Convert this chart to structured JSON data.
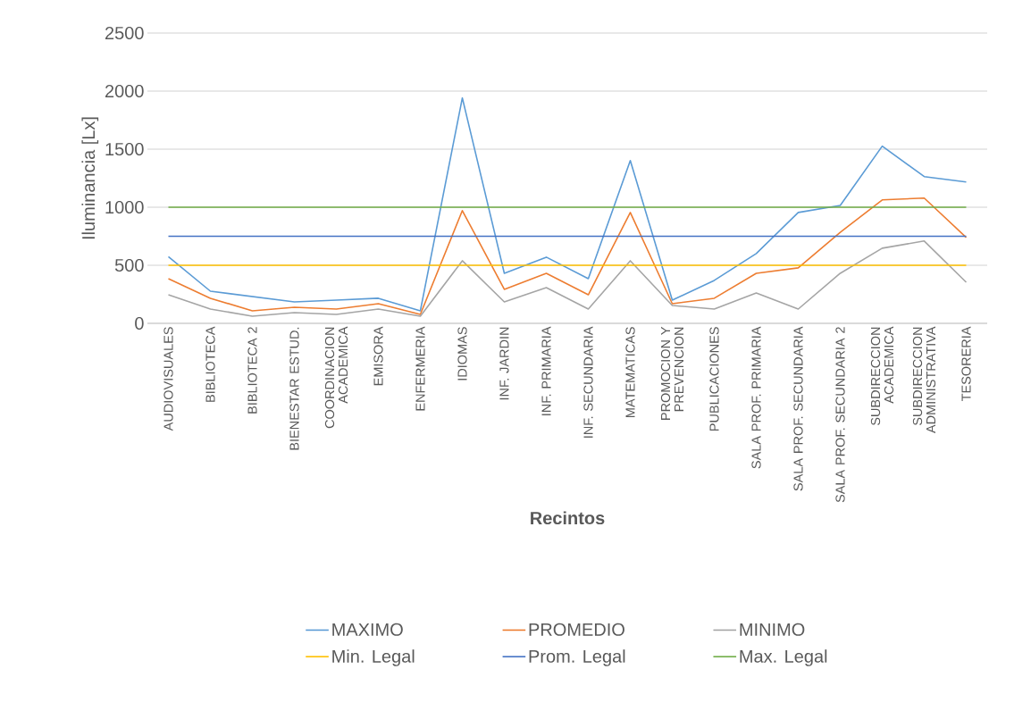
{
  "chart_data": {
    "type": "line",
    "xlabel": "Recintos",
    "ylabel": "Iluminancia [Lx]",
    "categories": [
      "AUDIOVISUALES",
      "BIBLIOTECA",
      "BIBLIOTECA 2",
      "BIENESTAR ESTUD.",
      "COORDINACION ACADEMICA",
      "EMISORA",
      "ENFERMERIA",
      "IDIOMAS",
      "INF. JARDIN",
      "INF. PRIMARIA",
      "INF. SECUNDARIA",
      "MATEMATICAS",
      "PROMOCION Y PREVENCION",
      "PUBLICACIONES",
      "SALA PROF. PRIMARIA",
      "SALA PROF. SECUNDARIA",
      "SALA PROF. SECUNDARIA 2",
      "SUBDIRECCION ACADEMICA",
      "SUBDIRECCION ADMINISTRATIVA",
      "TESORERIA"
    ],
    "series": [
      {
        "name": "MAXIMO",
        "color": "#5b9bd5",
        "values": [
          574,
          277,
          231,
          185,
          200,
          216,
          108,
          1941,
          431,
          570,
          385,
          1402,
          200,
          370,
          601,
          955,
          1015,
          1526,
          1264,
          1217
        ]
      },
      {
        "name": "PROMEDIO",
        "color": "#ed7d31",
        "values": [
          385,
          216,
          108,
          139,
          123,
          169,
          77,
          971,
          293,
          431,
          246,
          955,
          169,
          216,
          431,
          478,
          784,
          1063,
          1079,
          740
        ]
      },
      {
        "name": "MINIMO",
        "color": "#a5a5a5",
        "values": [
          246,
          123,
          62,
          92,
          77,
          123,
          62,
          539,
          185,
          308,
          123,
          539,
          154,
          123,
          262,
          123,
          431,
          647,
          709,
          354
        ]
      }
    ],
    "ref_lines": [
      {
        "axis": "y",
        "value": 500,
        "label": "Min. Legal",
        "color": "#ffc000"
      },
      {
        "axis": "y",
        "value": 750,
        "label": "Prom. Legal",
        "color": "#4472c4"
      },
      {
        "axis": "y",
        "value": 1000,
        "label": "Max. Legal",
        "color": "#70ad47"
      }
    ],
    "ylim": [
      0,
      2500
    ],
    "yticks": [
      0,
      500,
      1000,
      1500,
      2000,
      2500
    ],
    "grid": "y",
    "legend": "bottom",
    "marker": "none",
    "line_style": "solid"
  }
}
